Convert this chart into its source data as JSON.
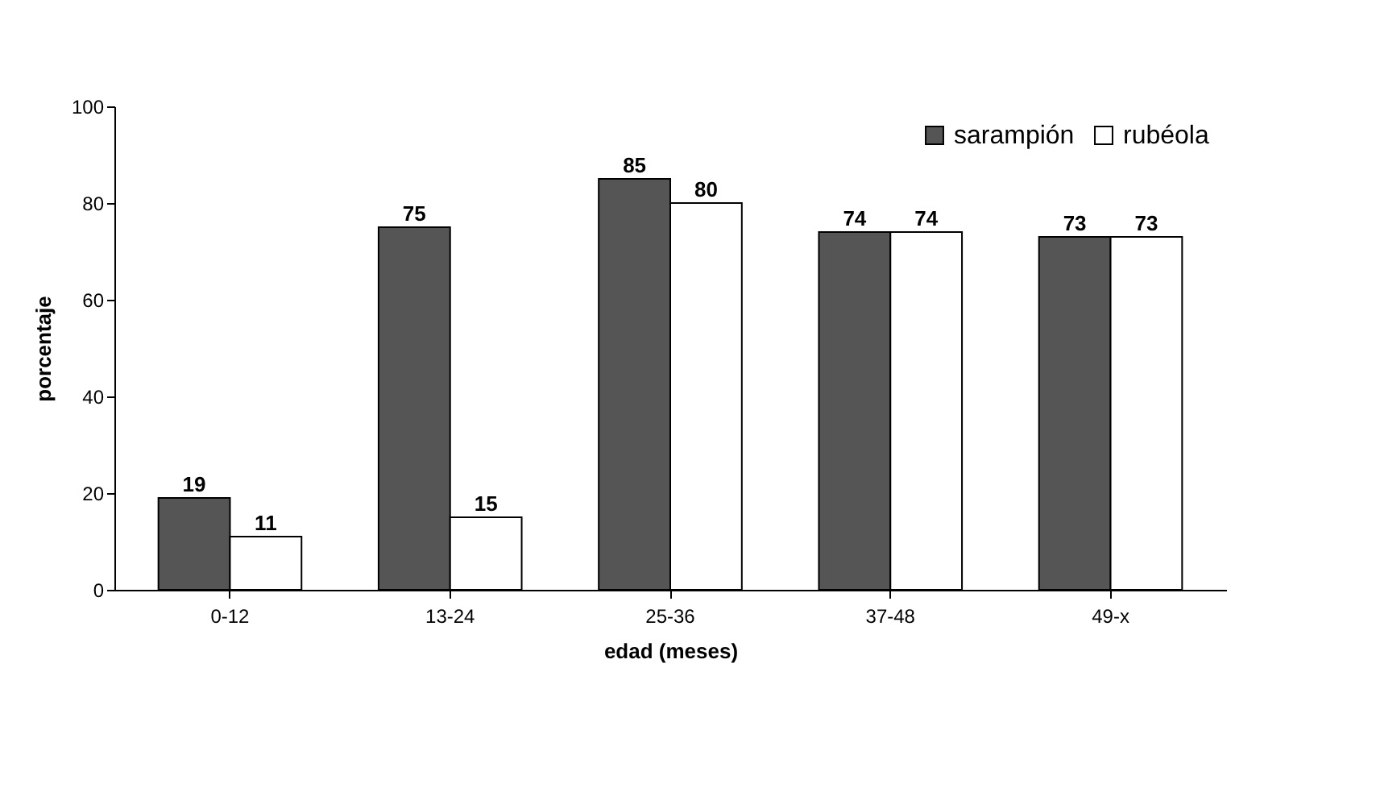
{
  "chart_data": {
    "type": "bar",
    "xlabel": "edad (meses)",
    "ylabel": "porcentaje",
    "categories": [
      "0-12",
      "13-24",
      "25-36",
      "37-48",
      "49-x"
    ],
    "series": [
      {
        "name": "sarampión",
        "color": "#555555",
        "values": [
          19,
          75,
          85,
          74,
          73
        ]
      },
      {
        "name": "rubéola",
        "color": "#ffffff",
        "values": [
          11,
          15,
          80,
          74,
          73
        ]
      }
    ],
    "ylim": [
      0,
      100
    ],
    "yticks": [
      0,
      20,
      40,
      60,
      80,
      100
    ],
    "grid": false,
    "legend": "top right",
    "data_labels": true
  }
}
